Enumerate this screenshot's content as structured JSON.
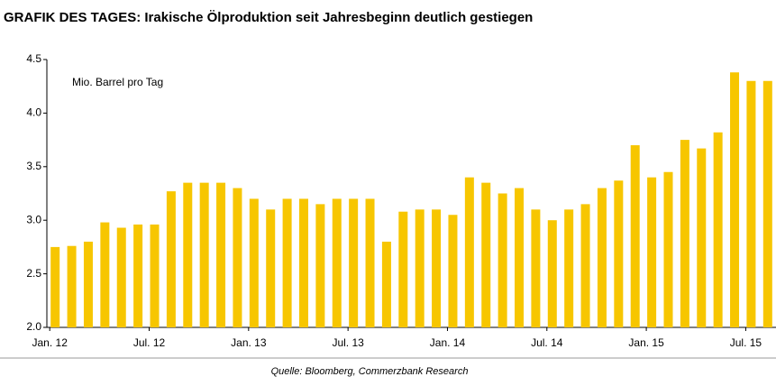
{
  "chart_data": {
    "type": "bar",
    "title": "GRAFIK DES TAGES: Irakische Ölproduktion seit Jahresbeginn deutlich gestiegen",
    "unit_label": "Mio. Barrel pro Tag",
    "source": "Quelle: Bloomberg, Commerzbank Research",
    "categories": [
      "Jan. 12",
      null,
      null,
      null,
      null,
      null,
      "Jul. 12",
      null,
      null,
      null,
      null,
      null,
      "Jan. 13",
      null,
      null,
      null,
      null,
      null,
      "Jul. 13",
      null,
      null,
      null,
      null,
      null,
      "Jan. 14",
      null,
      null,
      null,
      null,
      null,
      "Jul. 14",
      null,
      null,
      null,
      null,
      null,
      "Jan. 15",
      null,
      null,
      null,
      null,
      null,
      "Jul. 15",
      null
    ],
    "values": [
      2.75,
      2.76,
      2.8,
      2.98,
      2.93,
      2.96,
      2.96,
      3.27,
      3.35,
      3.35,
      3.35,
      3.3,
      3.2,
      3.1,
      3.2,
      3.2,
      3.15,
      3.2,
      3.2,
      3.2,
      2.8,
      3.08,
      3.1,
      3.1,
      3.05,
      3.4,
      3.35,
      3.25,
      3.3,
      3.1,
      3.0,
      3.1,
      3.15,
      3.3,
      3.37,
      3.7,
      3.4,
      3.45,
      3.75,
      3.67,
      3.82,
      4.38,
      4.3,
      4.3
    ],
    "color": "#f7c600",
    "ylim": [
      2.0,
      4.5
    ],
    "yticks": [
      {
        "value": 2.0,
        "label": "2.0"
      },
      {
        "value": 2.5,
        "label": "2.5"
      },
      {
        "value": 3.0,
        "label": "3.0"
      },
      {
        "value": 3.5,
        "label": "3.5"
      },
      {
        "value": 4.0,
        "label": "4.0"
      },
      {
        "value": 4.5,
        "label": "4.5"
      }
    ],
    "grid": false
  }
}
